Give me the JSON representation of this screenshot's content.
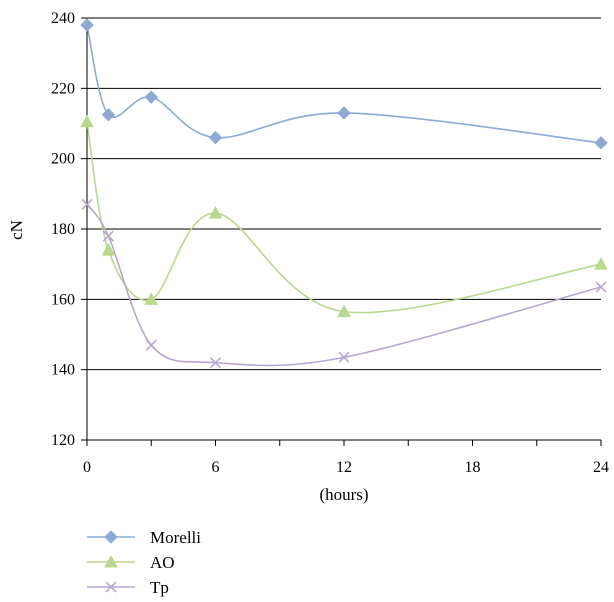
{
  "chart_data": {
    "type": "line",
    "title": "",
    "xlabel": "(hours)",
    "ylabel": "cN",
    "xlim": [
      0,
      24
    ],
    "ylim": [
      120,
      240
    ],
    "x_ticks": [
      0,
      6,
      12,
      18,
      24
    ],
    "y_ticks": [
      120,
      140,
      160,
      180,
      200,
      220,
      240
    ],
    "grid": "horizontal",
    "legend_position": "bottom-left",
    "series": [
      {
        "name": "Morelli",
        "color": "#8EA9D6",
        "marker": "diamond",
        "x": [
          0,
          1,
          3,
          6,
          12,
          24
        ],
        "y": [
          238,
          212.5,
          217.5,
          206,
          213,
          204.5
        ]
      },
      {
        "name": "AO",
        "color": "#B8D98D",
        "marker": "triangle",
        "x": [
          0,
          1,
          3,
          6,
          12,
          24
        ],
        "y": [
          210.5,
          174,
          160,
          184.5,
          156.5,
          170
        ]
      },
      {
        "name": "Tp",
        "color": "#B9A6D0",
        "marker": "cross",
        "x": [
          0,
          1,
          3,
          6,
          12,
          24
        ],
        "y": [
          187,
          178,
          147,
          142,
          143.5,
          163.5
        ]
      }
    ]
  }
}
